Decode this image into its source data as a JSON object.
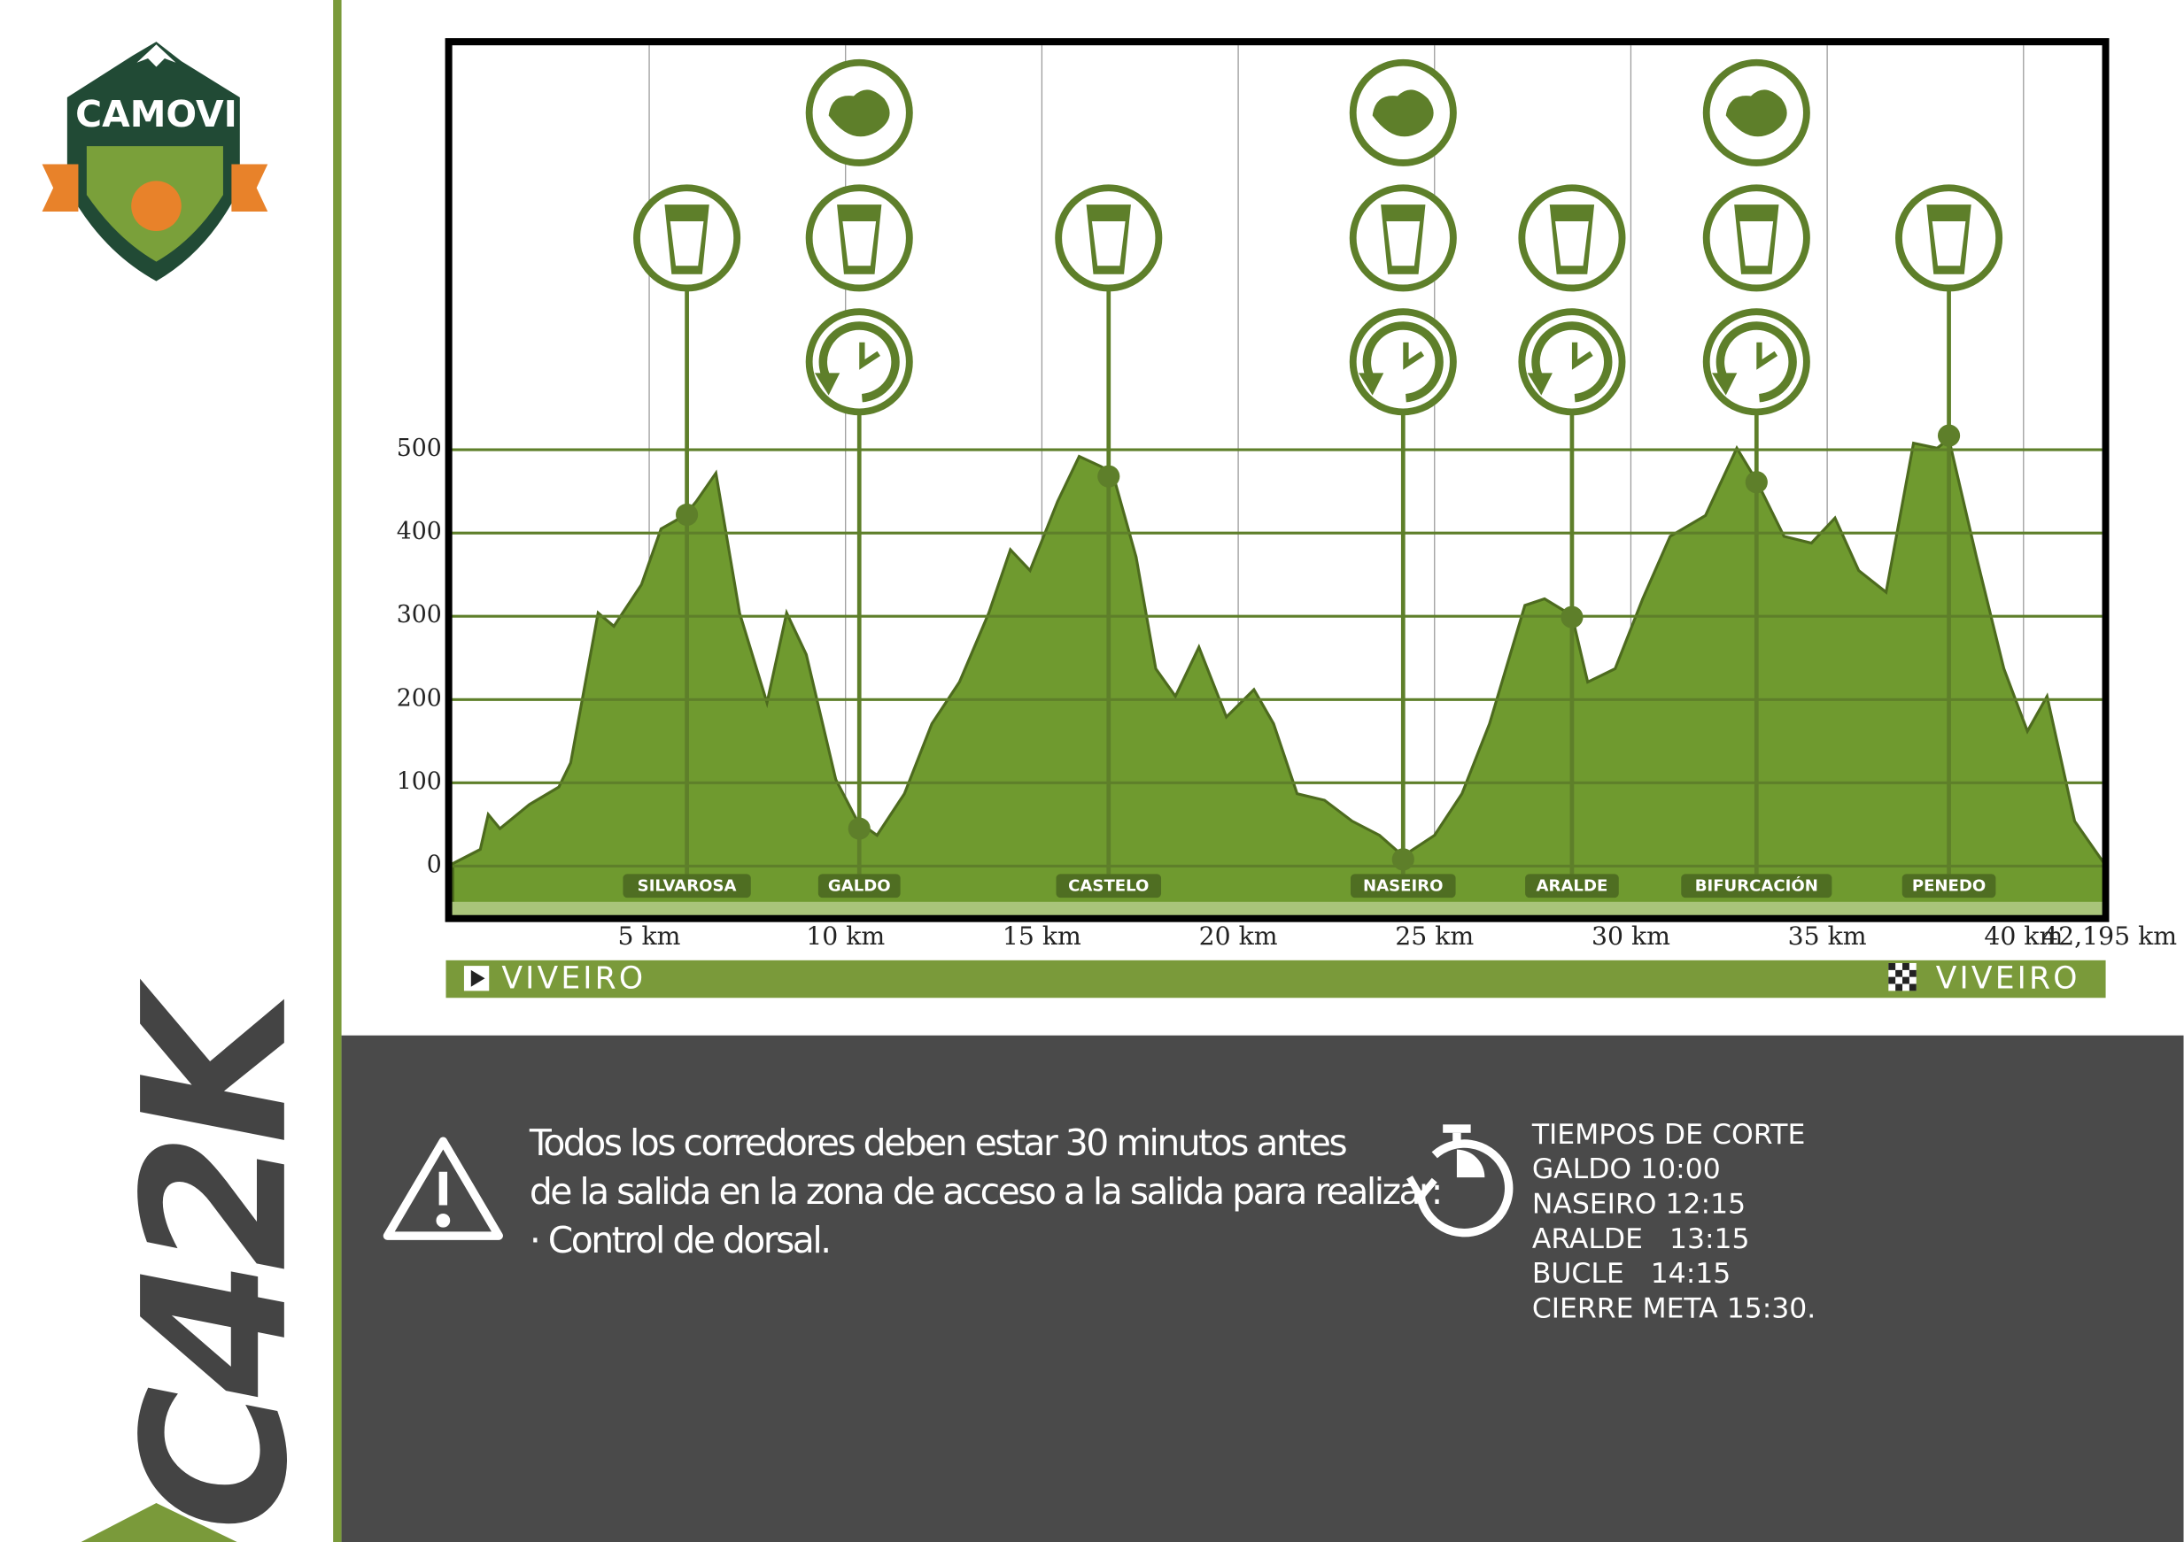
{
  "logo": "CAMOVI",
  "race": "C42K",
  "notice": [
    "Todos los corredores deben estar 30 minutos antes",
    "de la salida en la zona de acceso a la salida para realizar:",
    "· Control de dorsal."
  ],
  "cutoffs": {
    "title": "TIEMPOS DE CORTE",
    "lines": [
      "GALDO 10:00",
      "NASEIRO 12:15",
      "ARALDE   13:15",
      "BUCLE   14:15",
      "CIERRE META 15:30."
    ]
  },
  "start": "VIVEIRO",
  "finish": "VIVEIRO",
  "chart_data": {
    "type": "area",
    "color": "#6f9a2f",
    "x": [
      0,
      0.7,
      0.9,
      1.2,
      1.95,
      2.7,
      3.0,
      3.7,
      4.1,
      4.8,
      5.3,
      5.9,
      6.2,
      6.7,
      7.3,
      8.0,
      8.5,
      9.0,
      9.75,
      10.3,
      10.8,
      11.5,
      12.2,
      12.9,
      13.65,
      14.2,
      14.7,
      15.4,
      15.95,
      16.5,
      16.8,
      17.4,
      17.9,
      18.4,
      19.0,
      19.7,
      20.4,
      20.9,
      21.5,
      22.2,
      22.9,
      23.6,
      24.2,
      25.0,
      25.7,
      26.4,
      27.3,
      27.8,
      28.5,
      28.9,
      29.6,
      30.3,
      31.0,
      31.9,
      32.7,
      33.2,
      33.9,
      34.6,
      35.2,
      35.8,
      36.5,
      37.2,
      37.8,
      38.1,
      38.8,
      39.5,
      40.1,
      40.6,
      41.3,
      42.1
    ],
    "values": [
      3,
      20,
      62,
      45,
      74,
      95,
      124,
      304,
      288,
      338,
      405,
      421,
      438,
      472,
      304,
      196,
      304,
      254,
      104,
      54,
      37,
      87,
      171,
      221,
      304,
      380,
      355,
      438,
      492,
      480,
      472,
      371,
      237,
      204,
      263,
      179,
      212,
      171,
      87,
      79,
      54,
      37,
      12,
      37,
      87,
      171,
      313,
      321,
      301,
      221,
      237,
      321,
      396,
      421,
      502,
      463,
      396,
      388,
      418,
      355,
      329,
      508,
      502,
      513,
      371,
      237,
      162,
      204,
      54,
      0
    ],
    "xlim": [
      0,
      42.195
    ],
    "ylim": [
      -63,
      990
    ],
    "yticks": [
      0,
      100,
      200,
      300,
      400,
      500
    ],
    "xticks": [
      {
        "value": 5,
        "label": "5 km"
      },
      {
        "value": 10,
        "label": "10 km"
      },
      {
        "value": 15,
        "label": "15 km"
      },
      {
        "value": 20,
        "label": "20 km"
      },
      {
        "value": 25,
        "label": "25 km"
      },
      {
        "value": 30,
        "label": "30 km"
      },
      {
        "value": 35,
        "label": "35 km"
      },
      {
        "value": 40,
        "label": "40 km"
      },
      {
        "value": 42.195,
        "label": "42,195 km"
      }
    ],
    "grid": true,
    "stations": [
      {
        "name": "SILVAROSA",
        "km": 5.96,
        "elevation": 422
      },
      {
        "name": "GALDO",
        "km": 10.35,
        "elevation": 45
      },
      {
        "name": "CASTELO",
        "km": 16.7,
        "elevation": 468
      },
      {
        "name": "NASEIRO",
        "km": 24.2,
        "elevation": 8
      },
      {
        "name": "ARALDE",
        "km": 28.5,
        "elevation": 299
      },
      {
        "name": "BIFURCACIÓN",
        "km": 33.2,
        "elevation": 461
      },
      {
        "name": "PENEDO",
        "km": 38.1,
        "elevation": 517
      }
    ]
  }
}
